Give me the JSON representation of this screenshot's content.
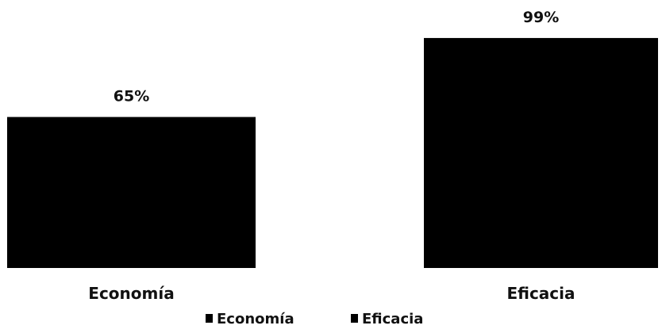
{
  "chart_data": {
    "type": "bar",
    "categories": [
      "Economía",
      "Eficacia"
    ],
    "values": [
      65,
      99
    ],
    "data_labels": [
      "65%",
      "99%"
    ],
    "ylim": [
      0,
      100
    ],
    "grid": false,
    "legend": {
      "placement": "bottom",
      "entries": [
        "Economía",
        "Eficacia"
      ]
    },
    "colors": {
      "bar": "#000000",
      "text": "#111111"
    }
  }
}
